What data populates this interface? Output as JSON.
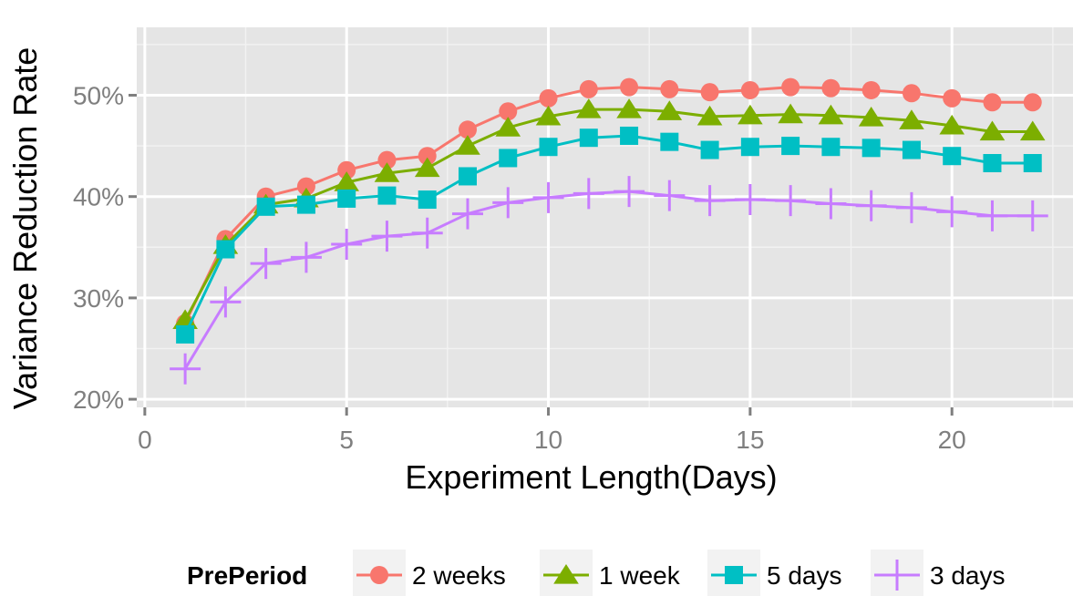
{
  "chart_data": {
    "type": "line",
    "xlabel": "Experiment Length(Days)",
    "ylabel": "Variance Reduction Rate",
    "xlim": [
      -0.2,
      23
    ],
    "ylim": [
      19.2,
      56.7
    ],
    "x_ticks": [
      0,
      5,
      10,
      15,
      20
    ],
    "x_tick_labels": [
      "0",
      "5",
      "10",
      "15",
      "20"
    ],
    "y_ticks": [
      20,
      30,
      40,
      50
    ],
    "y_tick_labels": [
      "20%",
      "30%",
      "40%",
      "50%"
    ],
    "grid": true,
    "panel_background": "#e5e5e5",
    "legend": {
      "title": "PrePeriod",
      "position": "bottom"
    },
    "x": [
      1,
      2,
      3,
      4,
      5,
      6,
      7,
      8,
      9,
      10,
      11,
      12,
      13,
      14,
      15,
      16,
      17,
      18,
      19,
      20,
      21,
      22
    ],
    "series": [
      {
        "name": "2 weeks",
        "color": "#f8766d",
        "marker": "circle",
        "values": [
          27.5,
          35.8,
          40.0,
          41.0,
          42.6,
          43.6,
          44.0,
          46.6,
          48.4,
          49.7,
          50.6,
          50.8,
          50.6,
          50.3,
          50.5,
          50.8,
          50.7,
          50.5,
          50.2,
          49.7,
          49.3,
          49.3
        ]
      },
      {
        "name": "1 week",
        "color": "#7cae00",
        "marker": "triangle",
        "values": [
          27.8,
          35.2,
          39.2,
          39.8,
          41.4,
          42.3,
          42.8,
          45.0,
          46.8,
          47.9,
          48.6,
          48.6,
          48.4,
          47.9,
          48.0,
          48.1,
          48.0,
          47.8,
          47.5,
          47.0,
          46.4,
          46.4
        ]
      },
      {
        "name": "5 days",
        "color": "#00bfc4",
        "marker": "square",
        "values": [
          26.4,
          34.8,
          39.0,
          39.2,
          39.8,
          40.1,
          39.7,
          42.0,
          43.8,
          44.9,
          45.8,
          46.0,
          45.4,
          44.6,
          44.9,
          45.0,
          44.9,
          44.8,
          44.6,
          44.0,
          43.3,
          43.3
        ]
      },
      {
        "name": "3 days",
        "color": "#c77cff",
        "marker": "plus",
        "values": [
          23.0,
          29.6,
          33.4,
          34.0,
          35.3,
          36.1,
          36.4,
          38.3,
          39.4,
          39.9,
          40.3,
          40.5,
          40.1,
          39.6,
          39.7,
          39.6,
          39.3,
          39.1,
          38.9,
          38.5,
          38.1,
          38.1
        ]
      }
    ]
  }
}
